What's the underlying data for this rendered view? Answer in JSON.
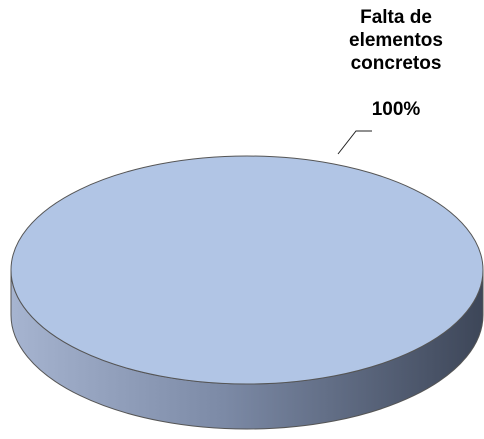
{
  "chart_data": {
    "type": "pie",
    "categories": [
      "Falta de elementos concretos"
    ],
    "values": [
      100
    ],
    "value_labels": [
      "100%"
    ],
    "colors": [
      "#b1c5e5"
    ]
  }
}
